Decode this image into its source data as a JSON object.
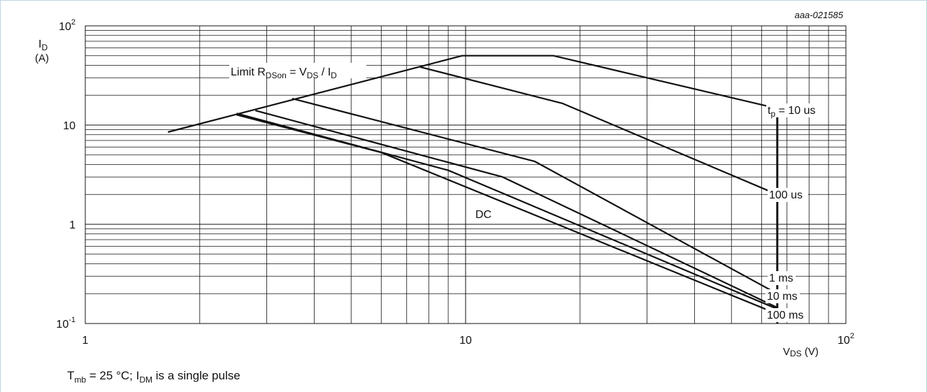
{
  "figure_id": "aaa-021585",
  "caption": {
    "part1": "T",
    "sub1": "mb",
    "part2": " = 25 °C; I",
    "sub2": "DM",
    "part3": " is a single pulse"
  },
  "chart_data": {
    "type": "line",
    "x_scale": "log",
    "y_scale": "log",
    "xlim": [
      1,
      100
    ],
    "ylim": [
      0.1,
      100
    ],
    "grid": true,
    "xlabel": {
      "main": "V",
      "sub": "DS",
      "unit": " (V)"
    },
    "ylabel": {
      "main": "I",
      "sub": "D",
      "unit": "(A)"
    },
    "x_ticks": [
      {
        "value": 1,
        "base": "1",
        "exp": ""
      },
      {
        "value": 10,
        "base": "10",
        "exp": ""
      },
      {
        "value": 100,
        "base": "10",
        "exp": "2"
      }
    ],
    "y_ticks": [
      {
        "value": 100,
        "base": "10",
        "exp": "2"
      },
      {
        "value": 10,
        "base": "10",
        "exp": ""
      },
      {
        "value": 1,
        "base": "1",
        "exp": ""
      },
      {
        "value": 0.1,
        "base": "10",
        "exp": "-1"
      }
    ],
    "limit_label": {
      "text": "Limit R",
      "sub1": "DSon",
      "mid": " = V",
      "sub2": "DS",
      "mid2": " / I",
      "sub3": "D"
    },
    "vertical_limit_x": 66,
    "series": [
      {
        "name": "t = 10 us",
        "label_main": "t",
        "label_sub": "p",
        "label_rest": " = 10 us",
        "points": [
          [
            9.8,
            50
          ],
          [
            17,
            50
          ],
          [
            66,
            14.7
          ]
        ]
      },
      {
        "name": "100 us",
        "label_main": "100 us",
        "points": [
          [
            7.6,
            38.5
          ],
          [
            18,
            16.5
          ],
          [
            66,
            2.0
          ]
        ]
      },
      {
        "name": "1 ms",
        "label_main": "1 ms",
        "points": [
          [
            3.5,
            18.5
          ],
          [
            15.2,
            4.3
          ],
          [
            66,
            0.2
          ]
        ]
      },
      {
        "name": "10 ms",
        "label_main": "10 ms",
        "points": [
          [
            2.8,
            14.0
          ],
          [
            12.5,
            3.0
          ],
          [
            66,
            0.145
          ]
        ]
      },
      {
        "name": "100 ms",
        "label_main": "100 ms",
        "points": [
          [
            2.5,
            13.1
          ],
          [
            9.0,
            3.5
          ],
          [
            66,
            0.14
          ]
        ]
      },
      {
        "name": "DC",
        "label_main": "DC",
        "points": [
          [
            2.5,
            12.7
          ],
          [
            6.0,
            5.3
          ],
          [
            66,
            0.125
          ]
        ]
      },
      {
        "name": "Limit",
        "label_main": "",
        "points": [
          [
            1.65,
            8.5
          ],
          [
            9.8,
            50
          ]
        ]
      }
    ],
    "colors": {
      "curve": "#111111",
      "grid": "#111111",
      "frame": "#bcd6e6"
    }
  }
}
